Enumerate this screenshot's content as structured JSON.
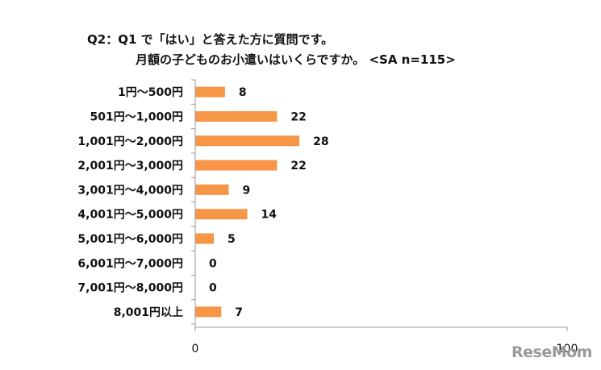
{
  "titles": {
    "line1": "Q2：Q1 で「はい」と答えた方に質問です。",
    "line2": "月額の子どものお小遣いはいくらですか。 <SA n=115>"
  },
  "watermark": "ReseMom",
  "colors": {
    "bar": "#f79646",
    "axis": "#9a9a9a"
  },
  "chart_data": {
    "type": "bar",
    "orientation": "horizontal",
    "categories": [
      "1円～500円",
      "501円～1,000円",
      "1,001円～2,000円",
      "2,001円～3,000円",
      "3,001円～4,000円",
      "4,001円～5,000円",
      "5,001円～6,000円",
      "6,001円～7,000円",
      "7,001円～8,000円",
      "8,001円以上"
    ],
    "values": [
      8,
      22,
      28,
      22,
      9,
      14,
      5,
      0,
      0,
      7
    ],
    "xlim": [
      0,
      100
    ],
    "x_ticks": [
      "0",
      "100"
    ],
    "grid": false
  }
}
